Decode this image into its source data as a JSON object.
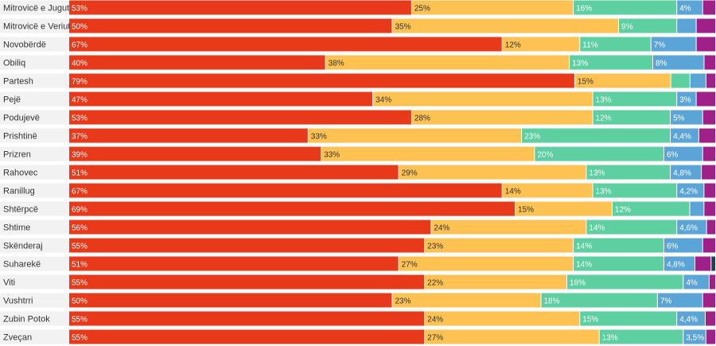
{
  "chart_data": {
    "type": "bar",
    "orientation": "horizontal",
    "stacked": true,
    "percent_scale": true,
    "legend": "none",
    "grid": false,
    "colors": [
      "#e8391a",
      "#fdc251",
      "#5ecfa0",
      "#5aa4d8",
      "#a0208a",
      "#1f3f4f"
    ],
    "categories": [
      "Mitrovicë e Jugut",
      "Mitrovicë e Veriut",
      "Novobërdë",
      "Obiliq",
      "Partesh",
      "Pejë",
      "Podujevë",
      "Prishtinë",
      "Prizren",
      "Rahovec",
      "Ranillug",
      "Shtërpcë",
      "Shtime",
      "Skënderaj",
      "Suharekë",
      "Viti",
      "Vushtrri",
      "Zubin Potok",
      "Zveçan"
    ],
    "series": [
      {
        "values": [
          53,
          50,
          67,
          40,
          79,
          47,
          53,
          37,
          39,
          51,
          67,
          69,
          56,
          55,
          51,
          55,
          50,
          55,
          55
        ],
        "labels": [
          "53%",
          "50%",
          "67%",
          "40%",
          "79%",
          "47%",
          "53%",
          "37%",
          "39%",
          "51%",
          "67%",
          "69%",
          "56%",
          "55%",
          "51%",
          "55%",
          "50%",
          "55%",
          "55%"
        ]
      },
      {
        "values": [
          25,
          35,
          12,
          38,
          15,
          34,
          28,
          33,
          33,
          29,
          14,
          15,
          24,
          23,
          27,
          22,
          23,
          24,
          27
        ],
        "labels": [
          "25%",
          "35%",
          "12%",
          "38%",
          "15%",
          "34%",
          "28%",
          "33%",
          "33%",
          "29%",
          "14%",
          "15%",
          "24%",
          "23%",
          "27%",
          "22%",
          "23%",
          "24%",
          "27%"
        ]
      },
      {
        "values": [
          16,
          9,
          11,
          13,
          3,
          13,
          12,
          23,
          20,
          13,
          13,
          12,
          14,
          14,
          14,
          18,
          18,
          15,
          13
        ],
        "labels": [
          "16%",
          "9%",
          "11%",
          "13%",
          "",
          "13%",
          "12%",
          "23%",
          "20%",
          "13%",
          "13%",
          "12%",
          "14%",
          "14%",
          "14%",
          "18%",
          "18%",
          "15%",
          "13%"
        ]
      },
      {
        "values": [
          4,
          3,
          7,
          8,
          2.5,
          3,
          5,
          4.4,
          6,
          4.8,
          4.2,
          2.2,
          4.6,
          6,
          4.8,
          4,
          7,
          4.4,
          3.5
        ],
        "labels": [
          "4%",
          "",
          "7%",
          "8%",
          "",
          "3%",
          "5%",
          "4,4%",
          "6%",
          "4,8%",
          "4,2%",
          "",
          "4,6%",
          "6%",
          "4,8%",
          "4%",
          "7%",
          "4,4%",
          "3,5%"
        ]
      },
      {
        "values": [
          2,
          3,
          3,
          1.8,
          1.5,
          3,
          2,
          2.6,
          2,
          2.2,
          1.8,
          1.8,
          1.4,
          2,
          2.5,
          1,
          2,
          1.6,
          1.5
        ],
        "labels": [
          "",
          "",
          "",
          "",
          "",
          "",
          "",
          "",
          "",
          "",
          "",
          "",
          "",
          "",
          "",
          "",
          "",
          "",
          ""
        ]
      },
      {
        "values": [
          0,
          0,
          0,
          0,
          0,
          0,
          0,
          0,
          0,
          0,
          0,
          0,
          0,
          0,
          0.7,
          0,
          0,
          0,
          0
        ],
        "labels": [
          "",
          "",
          "",
          "",
          "",
          "",
          "",
          "",
          "",
          "",
          "",
          "",
          "",
          "",
          "",
          "",
          "",
          "",
          ""
        ]
      }
    ]
  }
}
